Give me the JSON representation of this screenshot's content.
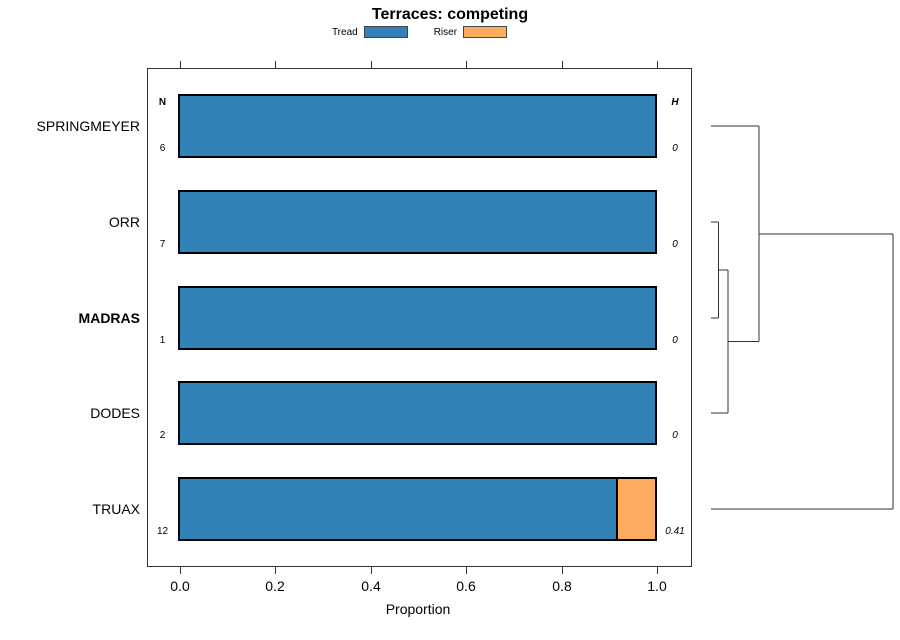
{
  "chart_data": {
    "type": "bar",
    "orientation": "horizontal",
    "stacked": true,
    "title": "Terraces: competing",
    "xlabel": "Proportion",
    "xlim": [
      0,
      1
    ],
    "x_ticks": [
      "0.0",
      "0.2",
      "0.4",
      "0.6",
      "0.8",
      "1.0"
    ],
    "x_tick_values": [
      0.0,
      0.2,
      0.4,
      0.6,
      0.8,
      1.0
    ],
    "grid": false,
    "legend_position": "top-center",
    "series_names": [
      "Tread",
      "Riser"
    ],
    "colors": {
      "tread": "#2f81b7",
      "riser": "#fbac5f"
    },
    "columns": {
      "n_header": "N",
      "h_header": "H"
    },
    "rows": [
      {
        "label": "SPRINGMEYER",
        "bold": false,
        "n": "6",
        "tread": 1.0,
        "riser": 0.0,
        "h": "0"
      },
      {
        "label": "ORR",
        "bold": false,
        "n": "7",
        "tread": 1.0,
        "riser": 0.0,
        "h": "0"
      },
      {
        "label": "MADRAS",
        "bold": true,
        "n": "1",
        "tread": 1.0,
        "riser": 0.0,
        "h": "0"
      },
      {
        "label": "DODES",
        "bold": false,
        "n": "2",
        "tread": 1.0,
        "riser": 0.0,
        "h": "0"
      },
      {
        "label": "TRUAX",
        "bold": false,
        "n": "12",
        "tread": 0.917,
        "riser": 0.083,
        "h": "0.41"
      }
    ],
    "dendrogram": {
      "position": "right",
      "leaves": [
        "SPRINGMEYER",
        "ORR",
        "MADRAS",
        "DODES",
        "TRUAX"
      ],
      "merges": [
        {
          "a": "ORR",
          "b": "MADRAS",
          "id": "c1",
          "height": 0.04
        },
        {
          "a": "c1",
          "b": "DODES",
          "id": "c2",
          "height": 0.094
        },
        {
          "a": "SPRINGMEYER",
          "b": "c2",
          "id": "c3",
          "height": 0.265
        },
        {
          "a": "c3",
          "b": "TRUAX",
          "id": "c4",
          "height": 1.0
        }
      ]
    }
  }
}
